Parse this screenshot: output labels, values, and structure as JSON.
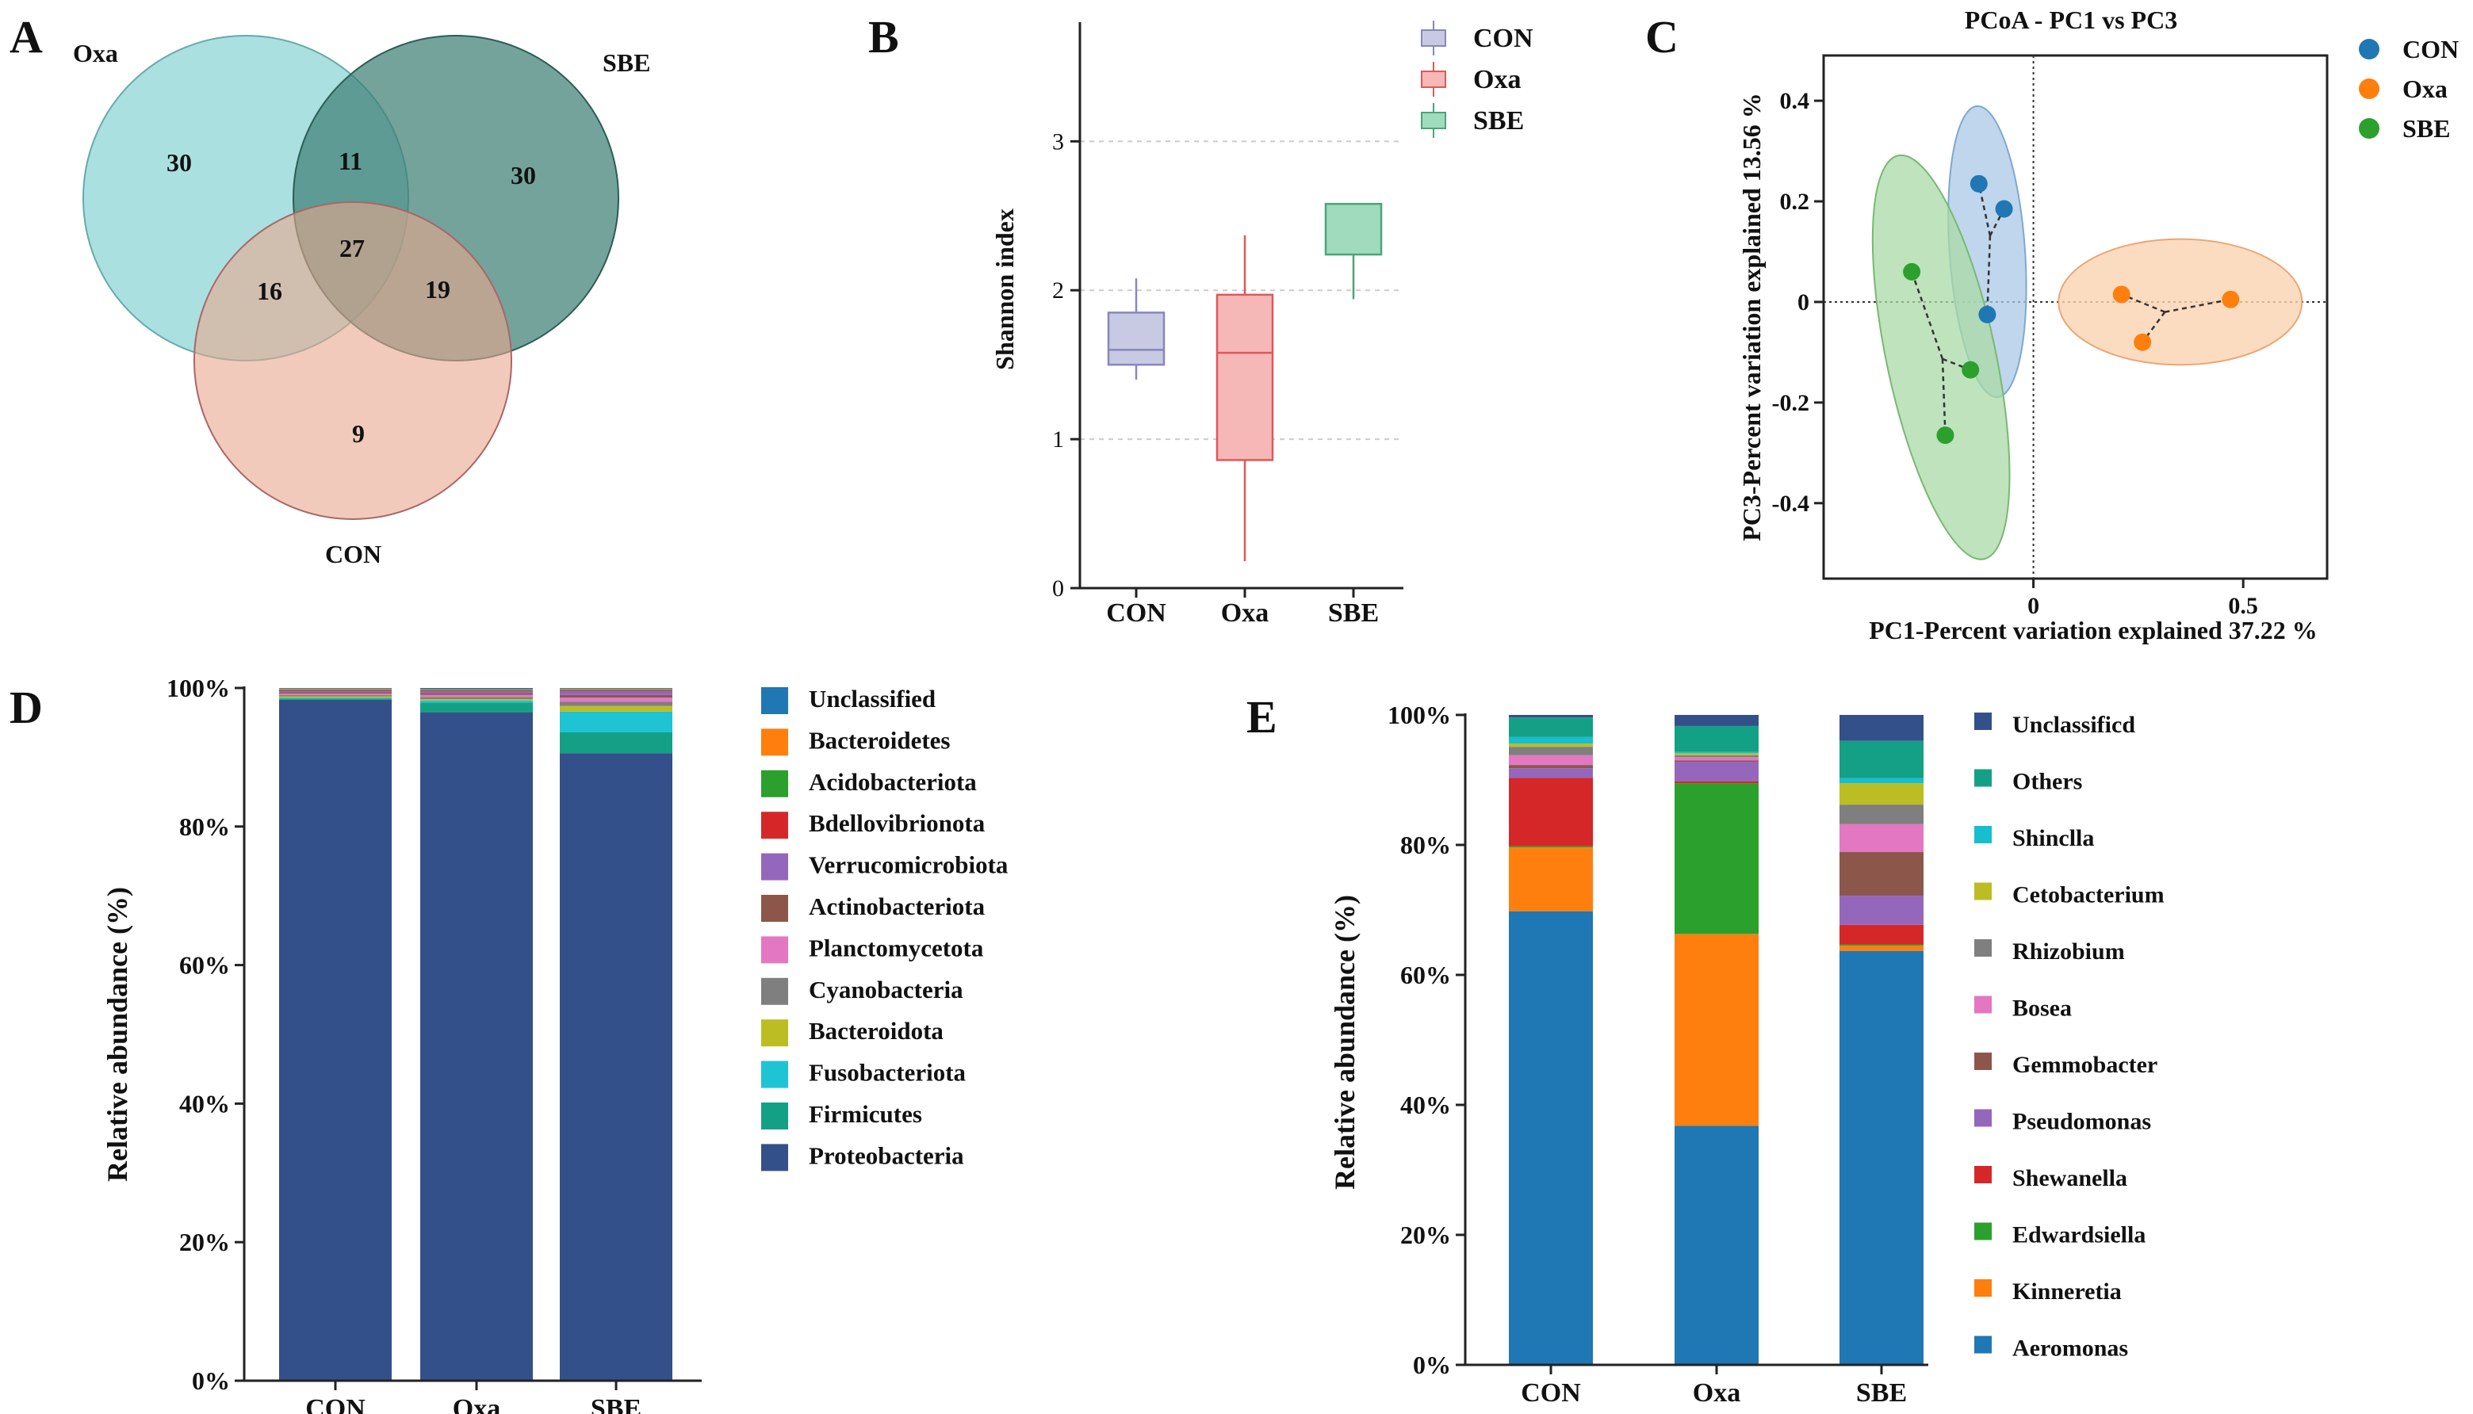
{
  "chart_data": [
    {
      "panel": "A",
      "type": "venn",
      "sets": [
        {
          "name": "Oxa",
          "color": "#7ecfd0"
        },
        {
          "name": "SBE",
          "color": "#3f8076"
        },
        {
          "name": "CON",
          "color": "#e9a68e"
        }
      ],
      "regions": {
        "oxa_only": 30,
        "sbe_only": 30,
        "con_only": 9,
        "oxa_sbe": 11,
        "oxa_con": 16,
        "sbe_con": 19,
        "all": 27
      }
    },
    {
      "panel": "B",
      "type": "box",
      "ylabel": "Shannon index",
      "ylim": [
        0,
        3.8
      ],
      "yticks": [
        "0",
        "1",
        "2",
        "3"
      ],
      "categories": [
        "CON",
        "Oxa",
        "SBE"
      ],
      "colors": [
        {
          "fill": "#c8c9e2",
          "stroke": "#8688bb"
        },
        {
          "fill": "#f6b7b7",
          "stroke": "#e05858"
        },
        {
          "fill": "#9fdbbc",
          "stroke": "#4aa57a"
        }
      ],
      "boxes": [
        {
          "min": 1.4,
          "q1": 1.5,
          "median": 1.6,
          "q3": 1.85,
          "max": 2.08
        },
        {
          "min": 0.18,
          "q1": 0.86,
          "median": 1.58,
          "q3": 1.97,
          "max": 2.37
        },
        {
          "min": 1.94,
          "q1": 2.24,
          "median": 2.58,
          "q3": 2.58,
          "max": 2.58
        }
      ],
      "legend": [
        "CON",
        "Oxa",
        "SBE"
      ]
    },
    {
      "panel": "C",
      "type": "scatter",
      "title": "PCoA - PC1 vs PC3",
      "xlabel": "PC1-Percent variation explained 37.22 %",
      "ylabel": "PC3-Percent variation explained 13.56 %",
      "xlim": [
        -0.5,
        0.7
      ],
      "ylim": [
        -0.55,
        0.49
      ],
      "xticks": [
        0,
        0.5
      ],
      "xtick_labels": [
        "0",
        "0.5"
      ],
      "yticks": [
        0.4,
        0.2,
        0,
        -0.2,
        -0.4
      ],
      "ytick_labels": [
        "0.4",
        "0.2",
        "0",
        "-0.2",
        "-0.4"
      ],
      "series": [
        {
          "name": "CON",
          "color": "#1f77b4",
          "x": [
            -0.13,
            -0.07,
            -0.11
          ],
          "y": [
            0.235,
            0.185,
            -0.025
          ]
        },
        {
          "name": "Oxa",
          "color": "#ff7f0e",
          "x": [
            0.21,
            0.26,
            0.47
          ],
          "y": [
            0.015,
            -0.08,
            0.005
          ]
        },
        {
          "name": "SBE",
          "color": "#2ca02c",
          "x": [
            -0.29,
            -0.15,
            -0.21
          ],
          "y": [
            0.06,
            -0.135,
            -0.265
          ]
        }
      ]
    },
    {
      "panel": "D",
      "type": "bar",
      "stacked": true,
      "ylabel": "Relative abundance (%)",
      "yticks": [
        "0%",
        "20%",
        "40%",
        "60%",
        "80%",
        "100%"
      ],
      "categories": [
        "CON",
        "Oxa",
        "SBE"
      ],
      "series": [
        {
          "name": "Proteobacteria",
          "color": "#34508a",
          "values": [
            98.3,
            96.5,
            90.6
          ]
        },
        {
          "name": "Firmicutes",
          "color": "#14a085",
          "values": [
            0.2,
            1.4,
            3.0
          ]
        },
        {
          "name": "Fusobacteriota",
          "color": "#1ec3d4",
          "values": [
            0.1,
            0.3,
            3.0
          ]
        },
        {
          "name": "Bacteroidota",
          "color": "#bcbd22",
          "values": [
            0.2,
            0.2,
            0.8
          ]
        },
        {
          "name": "Cyanobacteria",
          "color": "#7f7f7f",
          "values": [
            0.2,
            0.3,
            0.6
          ]
        },
        {
          "name": "Planctomycetota",
          "color": "#e377c2",
          "values": [
            0.2,
            0.3,
            0.6
          ]
        },
        {
          "name": "Actinobacteriota",
          "color": "#8c564b",
          "values": [
            0.2,
            0.2,
            0.4
          ]
        },
        {
          "name": "Verrucomicrobiota",
          "color": "#9467bd",
          "values": [
            0.2,
            0.3,
            0.6
          ]
        },
        {
          "name": "Bdellovibrionota",
          "color": "#d62728",
          "values": [
            0.1,
            0.1,
            0.1
          ]
        },
        {
          "name": "Acidobacteriota",
          "color": "#2ca02c",
          "values": [
            0.1,
            0.1,
            0.1
          ]
        },
        {
          "name": "Bacteroidetes",
          "color": "#ff7f0e",
          "values": [
            0.1,
            0.1,
            0.1
          ]
        },
        {
          "name": "Unclassified",
          "color": "#1f77b4",
          "values": [
            0.1,
            0.2,
            0.1
          ]
        }
      ],
      "legend": [
        "Unclassified",
        "Bacteroidetes",
        "Acidobacteriota",
        "Bdellovibrionota",
        "Verrucomicrobiota",
        "Actinobacteriota",
        "Planctomycetota",
        "Cyanobacteria",
        "Bacteroidota",
        "Fusobacteriota",
        "Firmicutes",
        "Proteobacteria"
      ]
    },
    {
      "panel": "E",
      "type": "bar",
      "stacked": true,
      "ylabel": "Relative abundance (%)",
      "yticks": [
        "0%",
        "20%",
        "40%",
        "60%",
        "80%",
        "100%"
      ],
      "categories": [
        "CON",
        "Oxa",
        "SBE"
      ],
      "series": [
        {
          "name": "Aeromonas",
          "color": "#1f77b4",
          "values": [
            69.8,
            36.8,
            63.7
          ]
        },
        {
          "name": "Kinneretia",
          "color": "#ff7f0e",
          "values": [
            9.8,
            29.5,
            0.8
          ]
        },
        {
          "name": "Edwardsiella",
          "color": "#2ca02c",
          "values": [
            0.2,
            23.2,
            0.2
          ]
        },
        {
          "name": "Shewanella",
          "color": "#d62728",
          "values": [
            10.5,
            0.3,
            3.0
          ]
        },
        {
          "name": "Pseudomonas",
          "color": "#9467bd",
          "values": [
            1.5,
            3.0,
            4.5
          ]
        },
        {
          "name": "Gemmobacter",
          "color": "#8c564b",
          "values": [
            0.5,
            0.2,
            6.7
          ]
        },
        {
          "name": "Bosea",
          "color": "#e377c2",
          "values": [
            1.5,
            0.5,
            4.3
          ]
        },
        {
          "name": "Rhizobium",
          "color": "#7f7f7f",
          "values": [
            1.3,
            0.3,
            3.0
          ]
        },
        {
          "name": "Cetobacterium",
          "color": "#bcbd22",
          "values": [
            0.5,
            0.3,
            3.3
          ]
        },
        {
          "name": "Shinclla",
          "color": "#17becf",
          "values": [
            1.0,
            0.2,
            0.8
          ]
        },
        {
          "name": "Others",
          "color": "#14a085",
          "values": [
            3.0,
            4.0,
            5.7
          ]
        },
        {
          "name": "Unclassificd",
          "color": "#34508a",
          "values": [
            0.4,
            1.7,
            4.0
          ]
        }
      ],
      "legend": [
        "Unclassificd",
        "Others",
        "Shinclla",
        "Cetobacterium",
        "Rhizobium",
        "Bosea",
        "Gemmobacter",
        "Pseudomonas",
        "Shewanella",
        "Edwardsiella",
        "Kinneretia",
        "Aeromonas"
      ]
    }
  ]
}
